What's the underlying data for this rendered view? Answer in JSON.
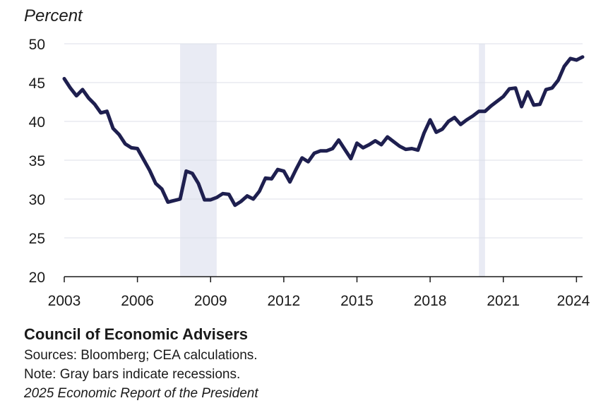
{
  "chart_data": {
    "type": "line",
    "title": "",
    "ylabel": "Percent",
    "xlabel": "",
    "ylim": [
      20,
      50
    ],
    "xlim": [
      2003,
      2024.25
    ],
    "yticks": [
      20,
      25,
      30,
      35,
      40,
      45,
      50
    ],
    "xticks": [
      2003,
      2006,
      2009,
      2012,
      2015,
      2018,
      2021,
      2024
    ],
    "grid": true,
    "recessions": [
      {
        "start": 2007.75,
        "end": 2009.25
      },
      {
        "start": 2020.0,
        "end": 2020.25
      }
    ],
    "series": [
      {
        "name": "Percent",
        "color": "#1e1f4f",
        "x": [
          2003.0,
          2003.25,
          2003.5,
          2003.75,
          2004.0,
          2004.25,
          2004.5,
          2004.75,
          2005.0,
          2005.25,
          2005.5,
          2005.75,
          2006.0,
          2006.25,
          2006.5,
          2006.75,
          2007.0,
          2007.25,
          2007.5,
          2007.75,
          2008.0,
          2008.25,
          2008.5,
          2008.75,
          2009.0,
          2009.25,
          2009.5,
          2009.75,
          2010.0,
          2010.25,
          2010.5,
          2010.75,
          2011.0,
          2011.25,
          2011.5,
          2011.75,
          2012.0,
          2012.25,
          2012.5,
          2012.75,
          2013.0,
          2013.25,
          2013.5,
          2013.75,
          2014.0,
          2014.25,
          2014.5,
          2014.75,
          2015.0,
          2015.25,
          2015.5,
          2015.75,
          2016.0,
          2016.25,
          2016.5,
          2016.75,
          2017.0,
          2017.25,
          2017.5,
          2017.75,
          2018.0,
          2018.25,
          2018.5,
          2018.75,
          2019.0,
          2019.25,
          2019.5,
          2019.75,
          2020.0,
          2020.25,
          2020.5,
          2020.75,
          2021.0,
          2021.25,
          2021.5,
          2021.75,
          2022.0,
          2022.25,
          2022.5,
          2022.75,
          2023.0,
          2023.25,
          2023.5,
          2023.75,
          2024.0,
          2024.25
        ],
        "values": [
          45.5,
          44.3,
          43.3,
          44.1,
          43.0,
          42.2,
          41.1,
          41.3,
          39.1,
          38.3,
          37.1,
          36.6,
          36.5,
          35.1,
          33.7,
          32.0,
          31.3,
          29.6,
          29.8,
          30.0,
          33.6,
          33.3,
          32.0,
          29.9,
          29.9,
          30.2,
          30.7,
          30.6,
          29.2,
          29.7,
          30.4,
          30.0,
          31.0,
          32.7,
          32.6,
          33.8,
          33.6,
          32.2,
          33.8,
          35.3,
          34.8,
          35.9,
          36.2,
          36.2,
          36.5,
          37.6,
          36.4,
          35.2,
          37.2,
          36.6,
          37.0,
          37.5,
          37.0,
          38.0,
          37.4,
          36.8,
          36.4,
          36.5,
          36.3,
          38.5,
          40.2,
          38.6,
          39.0,
          40.0,
          40.5,
          39.6,
          40.2,
          40.7,
          41.3,
          41.3,
          42.0,
          42.6,
          43.2,
          44.2,
          44.3,
          41.9,
          43.8,
          42.1,
          42.2,
          44.1,
          44.3,
          45.3,
          47.1,
          48.1,
          47.9,
          48.3
        ]
      }
    ]
  },
  "footer": {
    "org": "Council of Economic Advisers",
    "sources": "Sources: Bloomberg; CEA calculations.",
    "note": "Note: Gray bars indicate recessions.",
    "report": "2025 Economic Report of the President"
  }
}
